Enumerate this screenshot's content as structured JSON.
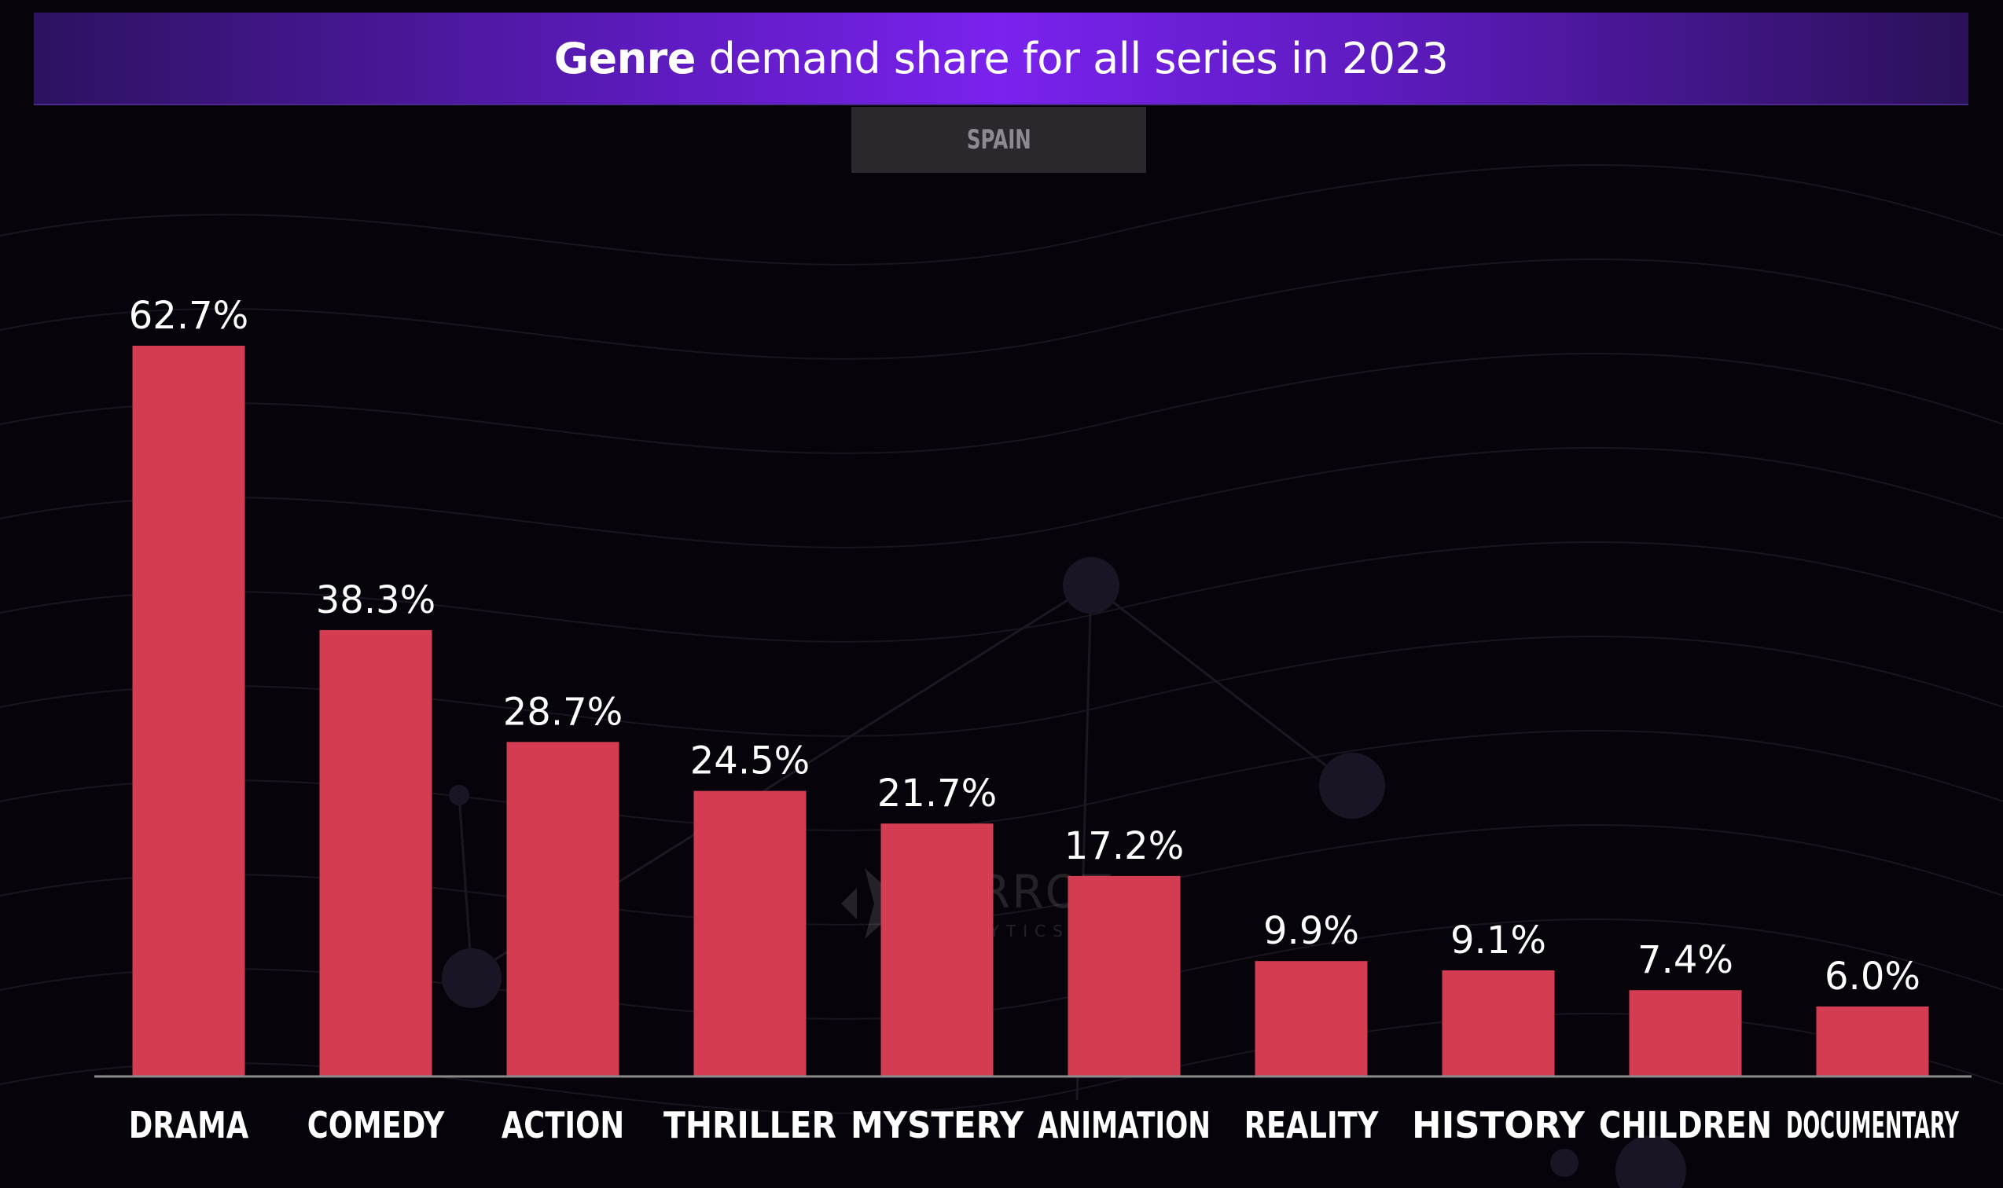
{
  "header": {
    "title_strong": "Genre",
    "title_rest": " demand share for all series in 2023",
    "region": "SPAIN"
  },
  "watermark": {
    "name": "PARROT",
    "sub": "ANALYTICS"
  },
  "colors": {
    "bar": "#d43c52",
    "background": "#06040a",
    "axis": "#8a8a8a"
  },
  "chart_data": {
    "type": "bar",
    "title": "Genre demand share for all series in 2023",
    "subtitle": "SPAIN",
    "categories": [
      "DRAMA",
      "COMEDY",
      "ACTION",
      "THRILLER",
      "MYSTERY",
      "ANIMATION",
      "REALITY",
      "HISTORY",
      "CHILDREN",
      "DOCUMENTARY"
    ],
    "values": [
      62.7,
      38.3,
      28.7,
      24.5,
      21.7,
      17.2,
      9.9,
      9.1,
      7.4,
      6.0
    ],
    "data_labels": [
      "62.7%",
      "38.3%",
      "28.7%",
      "24.5%",
      "21.7%",
      "17.2%",
      "9.9%",
      "9.1%",
      "7.4%",
      "6.0%"
    ],
    "xlabel": "",
    "ylabel": "",
    "ylim": [
      0,
      62.7
    ],
    "grid": false,
    "legend": "none"
  }
}
